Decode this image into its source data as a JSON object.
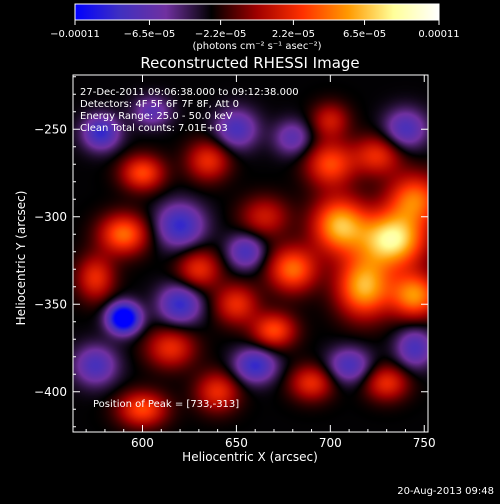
{
  "chart_data": {
    "type": "heatmap",
    "title": "Reconstructed RHESSI Image",
    "xlabel": "Heliocentric X (arcsec)",
    "ylabel": "Heliocentric Y (arcsec)",
    "xlim": [
      563,
      752
    ],
    "ylim": [
      -423,
      -219
    ],
    "x_ticks": [
      600,
      650,
      700,
      750
    ],
    "y_ticks": [
      -250,
      -300,
      -350,
      -400
    ],
    "x_tick_labels": [
      "600",
      "650",
      "700",
      "750"
    ],
    "y_tick_labels": [
      "−250",
      "−300",
      "−350",
      "−400"
    ],
    "colorbar": {
      "range": [
        -0.00011,
        0.00011
      ],
      "tick_values": [
        -0.00011,
        -6.5e-05,
        -2.2e-05,
        2.2e-05,
        6.5e-05,
        0.00011
      ],
      "tick_labels": [
        "−0.00011",
        "−6.5e−05",
        "−2.2e−05",
        "2.2e−05",
        "6.5e−05",
        "0.00011"
      ],
      "unit_label": "(photons cm⁻² s⁻¹ asec⁻²)",
      "colors": [
        "#0000ff",
        "#4030c0",
        "#7030a0",
        "#000000",
        "#a00000",
        "#ff3000",
        "#ff9900",
        "#ffff99",
        "#ffffff"
      ]
    },
    "annotations": [
      "27-Dec-2011 09:06:38.000 to 09:12:38.000",
      "Detectors: 4F 5F 6F 7F 8F, Att 0",
      "Energy Range: 25.0 - 50.0 keV",
      "Clean     Total counts: 7.01E+03"
    ],
    "peak_label": "Position of Peak = [733,-313]",
    "peak": {
      "x": 733,
      "y": -313
    },
    "blobs": [
      {
        "x": 733,
        "y": -313,
        "sx": 12,
        "sy": 11,
        "v": 0.00011
      },
      {
        "x": 705,
        "y": -305,
        "sx": 10,
        "sy": 11,
        "v": 9e-05
      },
      {
        "x": 718,
        "y": -340,
        "sx": 10,
        "sy": 12,
        "v": 9e-05
      },
      {
        "x": 745,
        "y": -290,
        "sx": 10,
        "sy": 10,
        "v": 7e-05
      },
      {
        "x": 745,
        "y": -345,
        "sx": 9,
        "sy": 9,
        "v": 8e-05
      },
      {
        "x": 680,
        "y": -330,
        "sx": 9,
        "sy": 9,
        "v": 7e-05
      },
      {
        "x": 670,
        "y": -365,
        "sx": 8,
        "sy": 7,
        "v": 6e-05
      },
      {
        "x": 700,
        "y": -270,
        "sx": 9,
        "sy": 9,
        "v": 6e-05
      },
      {
        "x": 725,
        "y": -265,
        "sx": 9,
        "sy": 8,
        "v": 5e-05
      },
      {
        "x": 650,
        "y": -350,
        "sx": 8,
        "sy": 8,
        "v": 5e-05
      },
      {
        "x": 590,
        "y": -310,
        "sx": 9,
        "sy": 8,
        "v": 7e-05
      },
      {
        "x": 600,
        "y": -275,
        "sx": 8,
        "sy": 7,
        "v": 6e-05
      },
      {
        "x": 635,
        "y": -268,
        "sx": 8,
        "sy": 8,
        "v": 5e-05
      },
      {
        "x": 630,
        "y": -330,
        "sx": 8,
        "sy": 8,
        "v": 5e-05
      },
      {
        "x": 575,
        "y": -335,
        "sx": 7,
        "sy": 9,
        "v": 5e-05
      },
      {
        "x": 615,
        "y": -375,
        "sx": 9,
        "sy": 8,
        "v": 5e-05
      },
      {
        "x": 600,
        "y": -410,
        "sx": 9,
        "sy": 7,
        "v": 6e-05
      },
      {
        "x": 640,
        "y": -400,
        "sx": 8,
        "sy": 8,
        "v": 5e-05
      },
      {
        "x": 690,
        "y": -395,
        "sx": 8,
        "sy": 7,
        "v": 5e-05
      },
      {
        "x": 730,
        "y": -395,
        "sx": 8,
        "sy": 7,
        "v": 5e-05
      },
      {
        "x": 665,
        "y": -300,
        "sx": 9,
        "sy": 8,
        "v": 4e-05
      },
      {
        "x": 700,
        "y": -245,
        "sx": 7,
        "sy": 7,
        "v": 4e-05
      },
      {
        "x": 590,
        "y": -358,
        "sx": 6,
        "sy": 6,
        "v": -0.00011
      },
      {
        "x": 578,
        "y": -252,
        "sx": 7,
        "sy": 7,
        "v": -6e-05
      },
      {
        "x": 620,
        "y": -305,
        "sx": 9,
        "sy": 9,
        "v": -6e-05
      },
      {
        "x": 650,
        "y": -250,
        "sx": 8,
        "sy": 8,
        "v": -5e-05
      },
      {
        "x": 655,
        "y": -320,
        "sx": 7,
        "sy": 7,
        "v": -5e-05
      },
      {
        "x": 620,
        "y": -350,
        "sx": 8,
        "sy": 8,
        "v": -6e-05
      },
      {
        "x": 575,
        "y": -385,
        "sx": 8,
        "sy": 8,
        "v": -5e-05
      },
      {
        "x": 660,
        "y": -385,
        "sx": 8,
        "sy": 7,
        "v": -6e-05
      },
      {
        "x": 710,
        "y": -385,
        "sx": 8,
        "sy": 7,
        "v": -5e-05
      },
      {
        "x": 745,
        "y": -375,
        "sx": 7,
        "sy": 8,
        "v": -5e-05
      },
      {
        "x": 740,
        "y": -250,
        "sx": 8,
        "sy": 8,
        "v": -5e-05
      },
      {
        "x": 680,
        "y": -255,
        "sx": 7,
        "sy": 7,
        "v": -4e-05
      },
      {
        "x": 605,
        "y": -240,
        "sx": 7,
        "sy": 6,
        "v": -4e-05
      }
    ]
  },
  "footer": {
    "timestamp": "20-Aug-2013 09:48"
  }
}
